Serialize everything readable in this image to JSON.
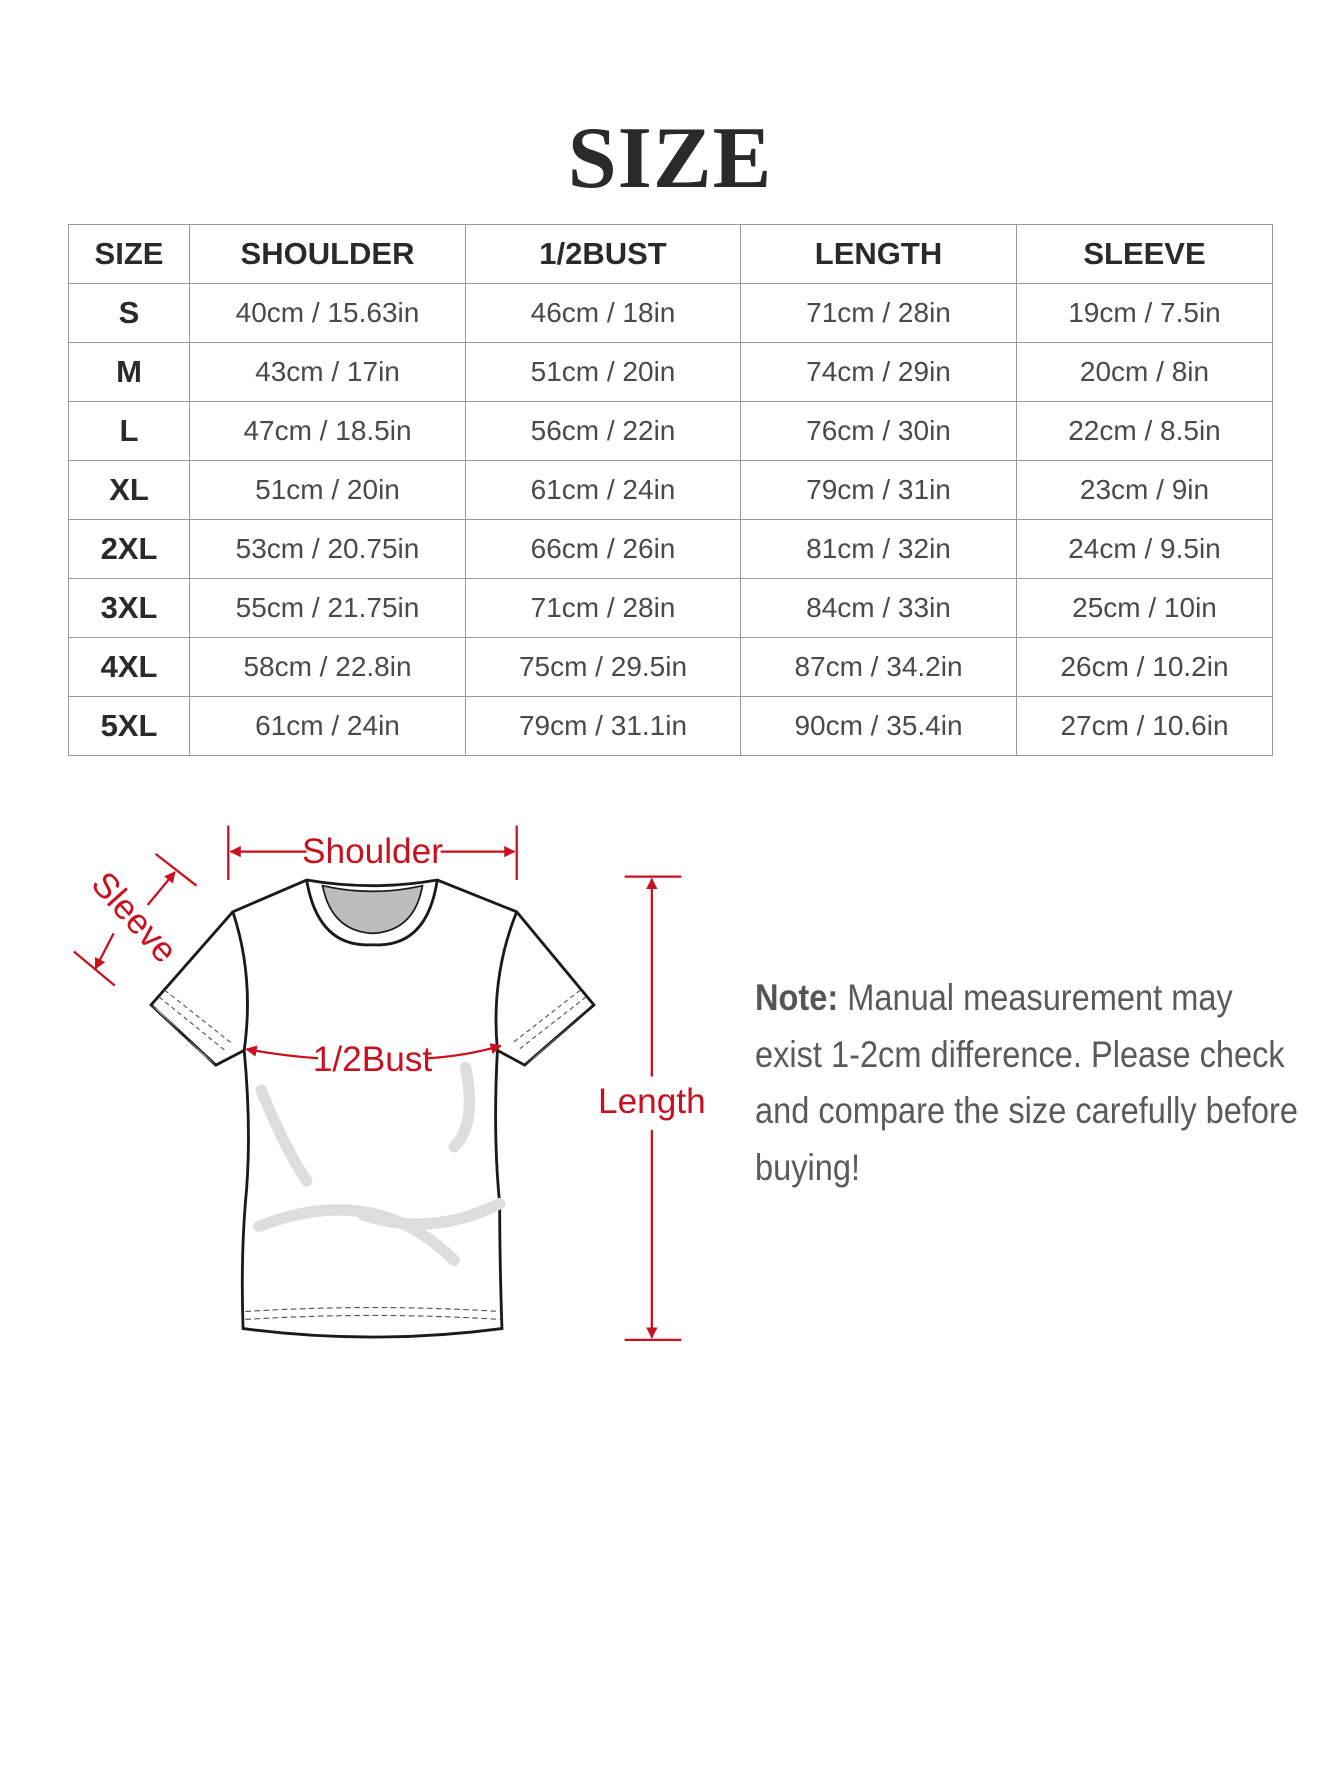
{
  "title": "SIZE",
  "table": {
    "headers": [
      "SIZE",
      "SHOULDER",
      "1/2BUST",
      "LENGTH",
      "SLEEVE"
    ],
    "rows": [
      [
        "S",
        "40cm / 15.63in",
        "46cm / 18in",
        "71cm / 28in",
        "19cm / 7.5in"
      ],
      [
        "M",
        "43cm / 17in",
        "51cm / 20in",
        "74cm / 29in",
        "20cm / 8in"
      ],
      [
        "L",
        "47cm / 18.5in",
        "56cm / 22in",
        "76cm / 30in",
        "22cm / 8.5in"
      ],
      [
        "XL",
        "51cm / 20in",
        "61cm / 24in",
        "79cm / 31in",
        "23cm / 9in"
      ],
      [
        "2XL",
        "53cm / 20.75in",
        "66cm / 26in",
        "81cm / 32in",
        "24cm / 9.5in"
      ],
      [
        "3XL",
        "55cm / 21.75in",
        "71cm / 28in",
        "84cm / 33in",
        "25cm / 10in"
      ],
      [
        "4XL",
        "58cm / 22.8in",
        "75cm / 29.5in",
        "87cm / 34.2in",
        "26cm / 10.2in"
      ],
      [
        "5XL",
        "61cm / 24in",
        "79cm / 31.1in",
        "90cm / 35.4in",
        "27cm / 10.6in"
      ]
    ]
  },
  "diagram": {
    "shoulder_label": "Shoulder",
    "sleeve_label": "Sleeve",
    "bust_label": "1/2Bust",
    "length_label": "Length",
    "accent_color": "#c8101e"
  },
  "note": {
    "label": "Note:",
    "text": "Manual measurement may exist 1-2cm difference. Please check and compare the size carefully before buying!"
  }
}
